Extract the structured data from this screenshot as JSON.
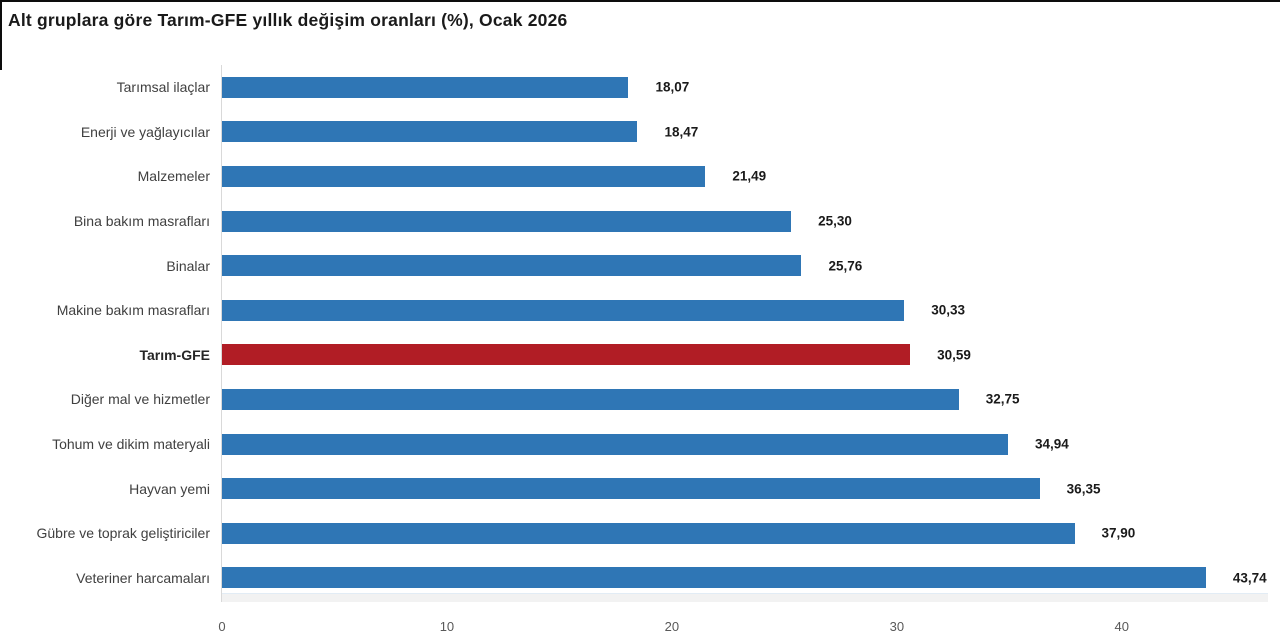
{
  "title": "Alt gruplara göre Tarım-GFE yıllık değişim oranları (%), Ocak 2026",
  "colors": {
    "bar": "#2F76B5",
    "highlight": "#B11D25",
    "axis_line": "#D9D9D9",
    "title_text": "#1A1A1A",
    "category_text": "#404040",
    "value_text": "#1A1A1A",
    "tick_text": "#595959"
  },
  "chart_data": {
    "type": "bar",
    "orientation": "horizontal",
    "title": "Alt gruplara göre Tarım-GFE yıllık değişim oranları (%), Ocak 2026",
    "categories": [
      "Tarımsal ilaçlar",
      "Enerji ve yağlayıcılar",
      "Malzemeler",
      "Bina bakım masrafları",
      "Binalar",
      "Makine bakım masrafları",
      "Tarım-GFE",
      "Diğer mal ve hizmetler",
      "Tohum ve dikim materyali",
      "Hayvan yemi",
      "Gübre ve toprak geliştiriciler",
      "Veteriner harcamaları"
    ],
    "values": [
      18.07,
      18.47,
      21.49,
      25.3,
      25.76,
      30.33,
      30.59,
      32.75,
      34.94,
      36.35,
      37.9,
      43.74
    ],
    "value_labels": [
      "18,07",
      "18,47",
      "21,49",
      "25,30",
      "25,76",
      "30,33",
      "30,59",
      "32,75",
      "34,94",
      "36,35",
      "37,90",
      "43,74"
    ],
    "highlight_index": 6,
    "highlight_category": "Tarım-GFE",
    "x_ticks": [
      0,
      10,
      20,
      30,
      40
    ],
    "xlim": [
      0,
      46.5
    ],
    "xlabel": "",
    "ylabel": "",
    "grid": false,
    "legend": false
  }
}
